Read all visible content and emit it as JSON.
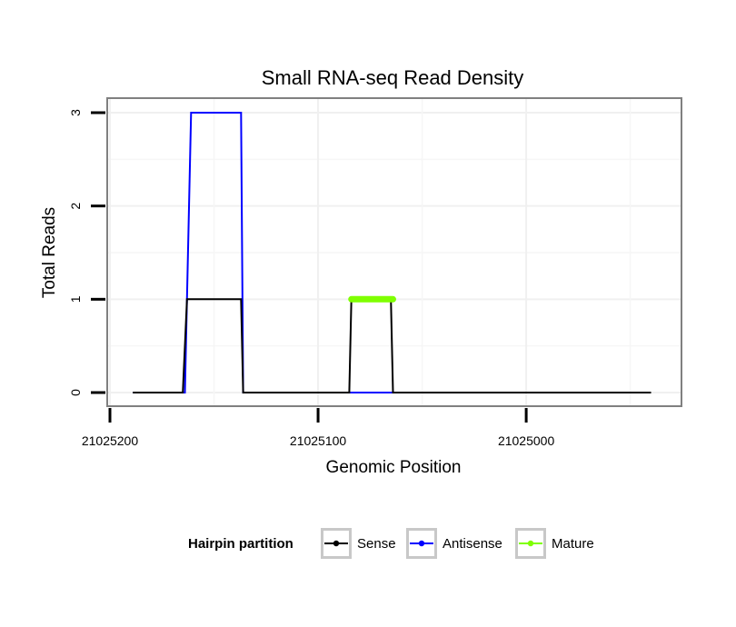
{
  "chart_data": {
    "type": "line",
    "title": "Small RNA-seq Read Density",
    "xlabel": "Genomic Position",
    "ylabel": "Total Reads",
    "x_reversed": true,
    "xlim": [
      21025200,
      21024935
    ],
    "ylim": [
      0,
      3
    ],
    "x_ticks": [
      21025200,
      21025100,
      21025000
    ],
    "x_tick_labels": [
      "21025200",
      "21025100",
      "21025000"
    ],
    "y_ticks": [
      0,
      1,
      2,
      3
    ],
    "y_tick_labels": [
      "0",
      "1",
      "2",
      "3"
    ],
    "y_tick_labels_rotated": true,
    "grid": true,
    "legend": {
      "title": "Hairpin partition",
      "position": "bottom",
      "entries": [
        {
          "label": "Sense",
          "color": "#000000"
        },
        {
          "label": "Antisense",
          "color": "#0000ff"
        },
        {
          "label": "Mature",
          "color": "#7fff00"
        }
      ]
    },
    "series": [
      {
        "name": "Sense",
        "color": "#000000",
        "x": [
          21025189,
          21025165,
          21025163,
          21025137,
          21025136,
          21025085,
          21025084,
          21025065,
          21025064,
          21024940
        ],
        "y": [
          0,
          0,
          1,
          1,
          0,
          0,
          1,
          1,
          0,
          0
        ]
      },
      {
        "name": "Antisense",
        "color": "#0000ff",
        "x": [
          21025189,
          21025164,
          21025161,
          21025137,
          21025136,
          21024940
        ],
        "y": [
          0,
          0,
          3,
          3,
          0,
          0
        ]
      },
      {
        "name": "Mature",
        "color": "#7fff00",
        "x": [
          21025084,
          21025064
        ],
        "y": [
          1,
          1
        ]
      }
    ]
  }
}
